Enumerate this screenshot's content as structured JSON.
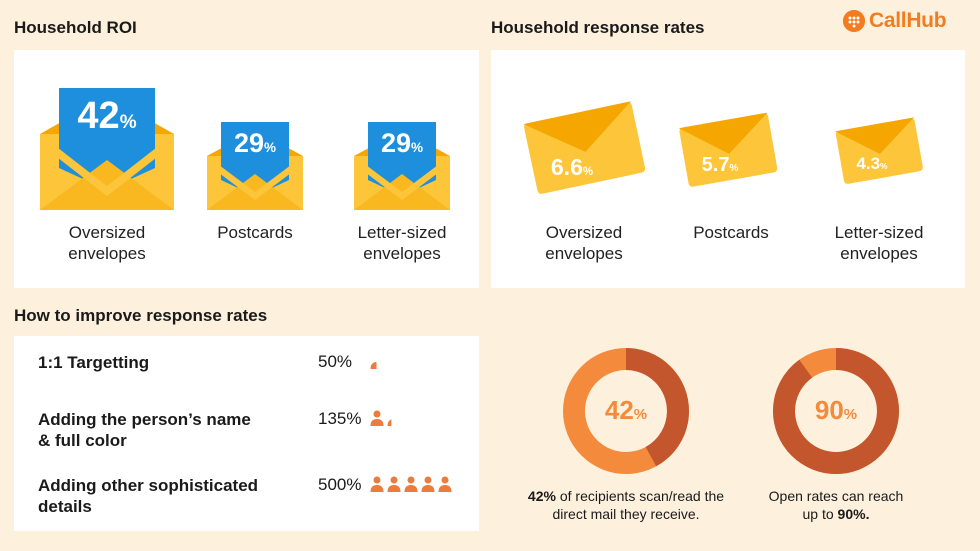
{
  "brand": {
    "name": "CallHub",
    "color": "#f47c20"
  },
  "roi": {
    "title": "Household ROI",
    "items": [
      {
        "value": "42",
        "unit": "%",
        "label_line1": "Oversized",
        "label_line2": "envelopes"
      },
      {
        "value": "29",
        "unit": "%",
        "label_line1": "Postcards",
        "label_line2": ""
      },
      {
        "value": "29",
        "unit": "%",
        "label_line1": "Letter-sized",
        "label_line2": "envelopes"
      }
    ]
  },
  "response_rates": {
    "title": "Household response rates",
    "items": [
      {
        "value": "6.6",
        "unit": "%",
        "label_line1": "Oversized",
        "label_line2": "envelopes"
      },
      {
        "value": "5.7",
        "unit": "%",
        "label_line1": "Postcards",
        "label_line2": ""
      },
      {
        "value": "4.3",
        "unit": "%",
        "label_line1": "Letter-sized",
        "label_line2": "envelopes"
      }
    ]
  },
  "improve": {
    "title": "How to improve response rates",
    "rows": [
      {
        "line1": "1:1 Targetting",
        "line2": "",
        "value": "50%",
        "persons": 0.5
      },
      {
        "line1": "Adding the person’s name",
        "line2": "& full color",
        "value": "135%",
        "persons": 1.35
      },
      {
        "line1": "Adding other sophisticated",
        "line2": "details",
        "value": "500%",
        "persons": 5
      }
    ]
  },
  "donuts": [
    {
      "value": "42",
      "unit": "%",
      "fraction": 0.42,
      "bold": "42%",
      "text_a": " of recipients scan/read the",
      "text_b": "direct mail they receive.",
      "bold_b": ""
    },
    {
      "value": "90",
      "unit": "%",
      "fraction": 0.9,
      "bold": "",
      "text_a": "Open rates can reach",
      "text_b": "up to ",
      "bold_b": "90%."
    }
  ],
  "colors": {
    "envelope": "#fcc53a",
    "envelope_dark": "#f5a600",
    "badge": "#1e8fdc",
    "donut_light": "#f48a3c",
    "donut_dark": "#c4562d",
    "person": "#ec7c3b"
  }
}
